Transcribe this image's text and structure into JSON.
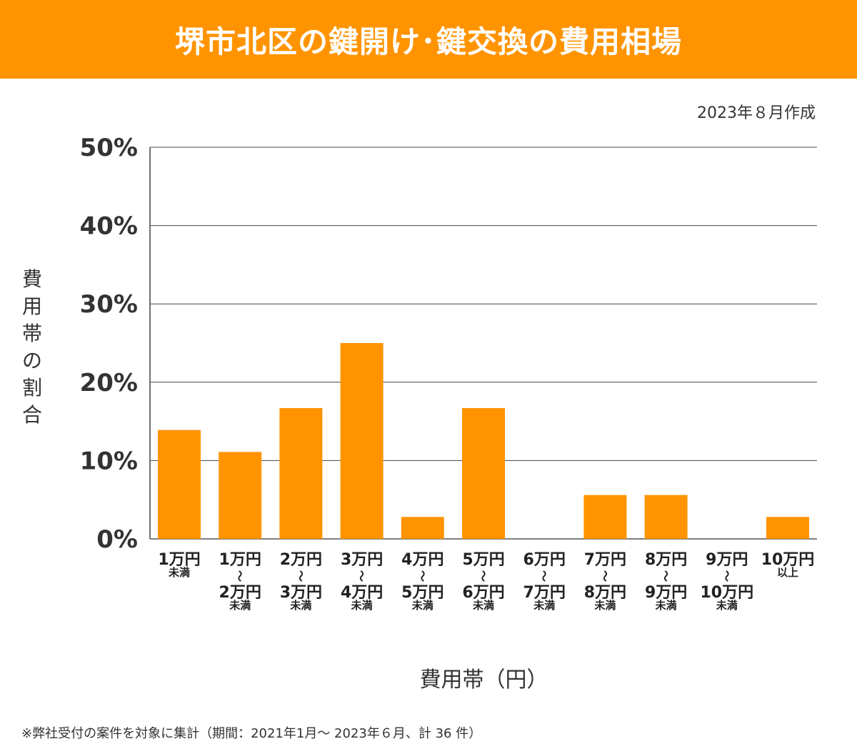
{
  "header": {
    "title": "堺市北区の鍵開け･鍵交換の費用相場",
    "bg_color": "#ff9400"
  },
  "created": "2023年８月作成",
  "chart_data": {
    "type": "bar",
    "categories": [
      [
        "1万円",
        "未満"
      ],
      [
        "1万円",
        "〜",
        "2万円",
        "未満"
      ],
      [
        "2万円",
        "〜",
        "3万円",
        "未満"
      ],
      [
        "3万円",
        "〜",
        "4万円",
        "未満"
      ],
      [
        "4万円",
        "〜",
        "5万円",
        "未満"
      ],
      [
        "5万円",
        "〜",
        "6万円",
        "未満"
      ],
      [
        "6万円",
        "〜",
        "7万円",
        "未満"
      ],
      [
        "7万円",
        "〜",
        "8万円",
        "未満"
      ],
      [
        "8万円",
        "〜",
        "9万円",
        "未満"
      ],
      [
        "9万円",
        "〜",
        "10万円",
        "未満"
      ],
      [
        "10万円",
        "以上"
      ]
    ],
    "values": [
      13.9,
      11.1,
      16.7,
      25.0,
      2.8,
      16.7,
      0,
      5.6,
      5.6,
      0,
      2.8
    ],
    "unit": "%",
    "yticks": [
      "0%",
      "10%",
      "20%",
      "30%",
      "40%",
      "50%"
    ],
    "ylim": [
      0,
      50
    ],
    "ylabel": "費用帯の割合",
    "xlabel": "費用帯（円）",
    "bar_color": "#ff9400",
    "grid": true
  },
  "footnote": "※弊社受付の案件を対象に集計（期間：2021年1月～ 2023年６月、計 36 件）"
}
